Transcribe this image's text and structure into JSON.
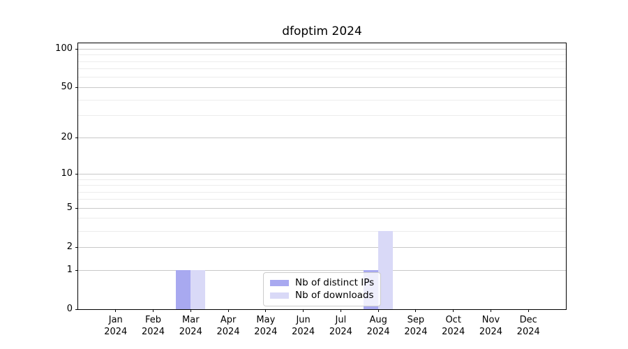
{
  "chart_data": {
    "type": "bar",
    "title": "dfoptim 2024",
    "categories": [
      "Jan\n2024",
      "Feb\n2024",
      "Mar\n2024",
      "Apr\n2024",
      "May\n2024",
      "Jun\n2024",
      "Jul\n2024",
      "Aug\n2024",
      "Sep\n2024",
      "Oct\n2024",
      "Nov\n2024",
      "Dec\n2024"
    ],
    "series": [
      {
        "name": "Nb of distinct IPs",
        "color": "#a8a9f0",
        "values": [
          0,
          0,
          1,
          0,
          0,
          0,
          0,
          1,
          0,
          0,
          0,
          0
        ]
      },
      {
        "name": "Nb of downloads",
        "color": "#d9d9f7",
        "values": [
          0,
          0,
          1,
          0,
          0,
          0,
          0,
          3,
          0,
          0,
          0,
          0
        ]
      }
    ],
    "yscale": "log1p",
    "ylim": [
      0,
      110.8
    ],
    "yticks_major": [
      0,
      1,
      2,
      5,
      10,
      20,
      50,
      100
    ],
    "yticks_minor": [
      3,
      4,
      6,
      7,
      8,
      9,
      30,
      40,
      60,
      70,
      80,
      90
    ],
    "grid": "both",
    "legend_position": "lower center"
  },
  "colors": {
    "grid_major": "#c8c8c8",
    "grid_minor": "#ececec",
    "axis": "#000000"
  }
}
